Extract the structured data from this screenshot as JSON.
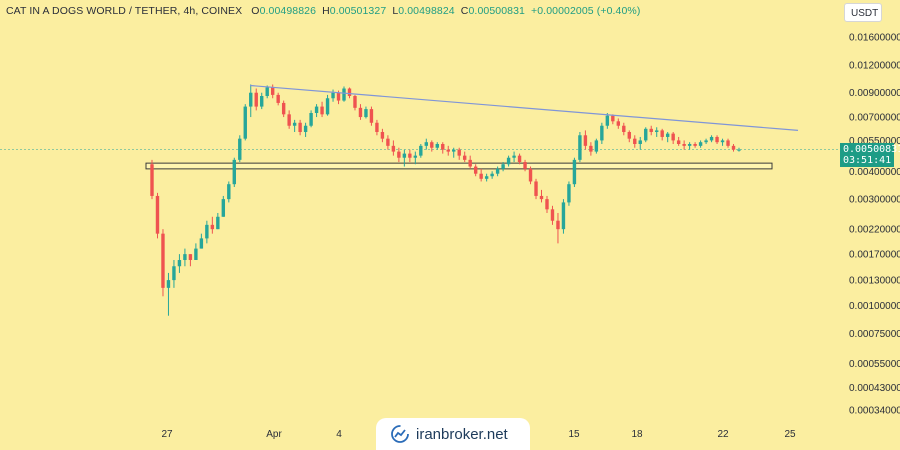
{
  "header": {
    "symbol": "CAT IN A DOGS WORLD / TETHER, 4h, COINEX",
    "o_label": "O",
    "o_value": "0.00498826",
    "h_label": "H",
    "h_value": "0.00501327",
    "l_label": "L",
    "l_value": "0.00498824",
    "c_label": "C",
    "c_value": "0.00500831",
    "change": "+0.00002005 (+0.40%)"
  },
  "currency": "USDT",
  "price_tag": {
    "price": "0.00500831",
    "countdown": "03:51:41"
  },
  "watermark": {
    "text": "iranbroker.net"
  },
  "colors": {
    "up": "#26a69a",
    "down": "#ef5350",
    "trendline": "#7f95d8",
    "zone_border": "#3a3a3a",
    "background": "#fbeea0"
  },
  "chart_data": {
    "type": "candlestick",
    "timeframe": "4h",
    "y_scale": "log",
    "y_ticks": [
      "0.01600000",
      "0.01200000",
      "0.00900000",
      "0.00700000",
      "0.00550000",
      "0.00400000",
      "0.00300000",
      "0.00220000",
      "0.00170000",
      "0.00130000",
      "0.00100000",
      "0.00075000",
      "0.00055000",
      "0.00043000",
      "0.00034000"
    ],
    "x_ticks": [
      "27",
      "Apr",
      "4",
      "15",
      "18",
      "22",
      "25"
    ],
    "last_price": 0.00500831,
    "annotations": [
      {
        "kind": "trendline",
        "from_price": 0.0097,
        "to_price": 0.0061
      },
      {
        "kind": "horizontal_zone",
        "low": 0.0041,
        "high": 0.00435
      }
    ],
    "candles": [
      [
        0.0043,
        0.0045,
        0.003,
        0.0031
      ],
      [
        0.0031,
        0.0032,
        0.002,
        0.0021
      ],
      [
        0.0021,
        0.0022,
        0.0011,
        0.0012
      ],
      [
        0.0012,
        0.0014,
        0.0009,
        0.0013
      ],
      [
        0.0013,
        0.0016,
        0.0012,
        0.0015
      ],
      [
        0.0015,
        0.0017,
        0.0014,
        0.0016
      ],
      [
        0.0016,
        0.0018,
        0.0015,
        0.0017
      ],
      [
        0.0017,
        0.0017,
        0.0015,
        0.0016
      ],
      [
        0.0016,
        0.0019,
        0.0016,
        0.0018
      ],
      [
        0.0018,
        0.0021,
        0.0018,
        0.002
      ],
      [
        0.002,
        0.0024,
        0.0019,
        0.0023
      ],
      [
        0.0023,
        0.0025,
        0.0021,
        0.0022
      ],
      [
        0.0022,
        0.0026,
        0.0022,
        0.0025
      ],
      [
        0.0025,
        0.0031,
        0.0025,
        0.003
      ],
      [
        0.003,
        0.0036,
        0.0029,
        0.0035
      ],
      [
        0.0035,
        0.0046,
        0.0034,
        0.0045
      ],
      [
        0.0045,
        0.0058,
        0.0044,
        0.0056
      ],
      [
        0.0056,
        0.008,
        0.0055,
        0.0078
      ],
      [
        0.0078,
        0.0098,
        0.007,
        0.009
      ],
      [
        0.009,
        0.0094,
        0.0075,
        0.0078
      ],
      [
        0.0078,
        0.009,
        0.0076,
        0.0087
      ],
      [
        0.0087,
        0.0097,
        0.0085,
        0.0095
      ],
      [
        0.0095,
        0.0098,
        0.0085,
        0.0088
      ],
      [
        0.0088,
        0.009,
        0.0079,
        0.0081
      ],
      [
        0.0081,
        0.0083,
        0.007,
        0.0072
      ],
      [
        0.0072,
        0.0075,
        0.0062,
        0.0064
      ],
      [
        0.0064,
        0.0068,
        0.006,
        0.0066
      ],
      [
        0.0066,
        0.0068,
        0.0058,
        0.006
      ],
      [
        0.006,
        0.0066,
        0.0057,
        0.0064
      ],
      [
        0.0064,
        0.0075,
        0.0063,
        0.0073
      ],
      [
        0.0073,
        0.008,
        0.007,
        0.0078
      ],
      [
        0.0078,
        0.0082,
        0.007,
        0.0072
      ],
      [
        0.0072,
        0.0088,
        0.0071,
        0.0085
      ],
      [
        0.0085,
        0.0093,
        0.0082,
        0.009
      ],
      [
        0.009,
        0.0092,
        0.008,
        0.0083
      ],
      [
        0.0083,
        0.0096,
        0.0082,
        0.0094
      ],
      [
        0.0094,
        0.0095,
        0.0085,
        0.0087
      ],
      [
        0.0087,
        0.0088,
        0.0075,
        0.0077
      ],
      [
        0.0077,
        0.008,
        0.0068,
        0.007
      ],
      [
        0.007,
        0.0078,
        0.0069,
        0.0076
      ],
      [
        0.0076,
        0.0078,
        0.0064,
        0.0066
      ],
      [
        0.0066,
        0.0068,
        0.0058,
        0.006
      ],
      [
        0.006,
        0.0062,
        0.0054,
        0.0056
      ],
      [
        0.0056,
        0.0058,
        0.005,
        0.0052
      ],
      [
        0.0052,
        0.0055,
        0.0047,
        0.0049
      ],
      [
        0.0049,
        0.0051,
        0.0044,
        0.0046
      ],
      [
        0.0046,
        0.005,
        0.0042,
        0.0048
      ],
      [
        0.0048,
        0.005,
        0.0044,
        0.0046
      ],
      [
        0.0046,
        0.0049,
        0.0043,
        0.0047
      ],
      [
        0.0047,
        0.0053,
        0.0046,
        0.0052
      ],
      [
        0.0052,
        0.0056,
        0.005,
        0.0054
      ],
      [
        0.0054,
        0.0055,
        0.0049,
        0.0051
      ],
      [
        0.0051,
        0.0054,
        0.005,
        0.0053
      ],
      [
        0.0053,
        0.0054,
        0.0048,
        0.005
      ],
      [
        0.005,
        0.0052,
        0.0047,
        0.0049
      ],
      [
        0.0049,
        0.0051,
        0.0046,
        0.005
      ],
      [
        0.005,
        0.0051,
        0.0045,
        0.0047
      ],
      [
        0.0047,
        0.0049,
        0.0044,
        0.0045
      ],
      [
        0.0045,
        0.0047,
        0.0041,
        0.0042
      ],
      [
        0.0042,
        0.0043,
        0.0038,
        0.0039
      ],
      [
        0.0039,
        0.0041,
        0.0036,
        0.0037
      ],
      [
        0.0037,
        0.0039,
        0.0036,
        0.0038
      ],
      [
        0.0038,
        0.004,
        0.0037,
        0.0039
      ],
      [
        0.0039,
        0.0042,
        0.0038,
        0.0041
      ],
      [
        0.0041,
        0.0044,
        0.004,
        0.0043
      ],
      [
        0.0043,
        0.0047,
        0.0042,
        0.0046
      ],
      [
        0.0046,
        0.0049,
        0.0044,
        0.0047
      ],
      [
        0.0047,
        0.0048,
        0.0043,
        0.0044
      ],
      [
        0.0044,
        0.0045,
        0.004,
        0.0041
      ],
      [
        0.0041,
        0.0042,
        0.0035,
        0.0036
      ],
      [
        0.0036,
        0.0037,
        0.003,
        0.0031
      ],
      [
        0.0031,
        0.0033,
        0.0029,
        0.003
      ],
      [
        0.003,
        0.0031,
        0.0026,
        0.0027
      ],
      [
        0.0027,
        0.0028,
        0.0023,
        0.0024
      ],
      [
        0.0024,
        0.0026,
        0.0019,
        0.0022
      ],
      [
        0.0022,
        0.003,
        0.0021,
        0.0029
      ],
      [
        0.0029,
        0.0036,
        0.0028,
        0.0035
      ],
      [
        0.0035,
        0.0046,
        0.0034,
        0.0045
      ],
      [
        0.0045,
        0.006,
        0.0044,
        0.0058
      ],
      [
        0.0058,
        0.0061,
        0.005,
        0.0052
      ],
      [
        0.0052,
        0.0054,
        0.0047,
        0.0049
      ],
      [
        0.0049,
        0.0056,
        0.0048,
        0.0055
      ],
      [
        0.0055,
        0.0066,
        0.0053,
        0.0064
      ],
      [
        0.0064,
        0.0073,
        0.0062,
        0.0071
      ],
      [
        0.0071,
        0.0072,
        0.0065,
        0.0067
      ],
      [
        0.0067,
        0.0069,
        0.0062,
        0.0064
      ],
      [
        0.0064,
        0.0066,
        0.0058,
        0.006
      ],
      [
        0.006,
        0.0061,
        0.0054,
        0.0056
      ],
      [
        0.0056,
        0.0058,
        0.0051,
        0.0053
      ],
      [
        0.0053,
        0.0057,
        0.005,
        0.0055
      ],
      [
        0.0055,
        0.0063,
        0.0054,
        0.0062
      ],
      [
        0.0062,
        0.0064,
        0.0058,
        0.006
      ],
      [
        0.006,
        0.0063,
        0.0057,
        0.0061
      ],
      [
        0.0061,
        0.0062,
        0.0055,
        0.0057
      ],
      [
        0.0057,
        0.006,
        0.0054,
        0.0059
      ],
      [
        0.0059,
        0.006,
        0.0053,
        0.0055
      ],
      [
        0.0055,
        0.0057,
        0.0052,
        0.0053
      ],
      [
        0.0053,
        0.0055,
        0.005,
        0.0052
      ],
      [
        0.0052,
        0.0054,
        0.005,
        0.0053
      ],
      [
        0.0053,
        0.0054,
        0.0051,
        0.0052
      ],
      [
        0.0052,
        0.0055,
        0.0051,
        0.0054
      ],
      [
        0.0054,
        0.0056,
        0.0053,
        0.0055
      ],
      [
        0.0055,
        0.0058,
        0.0054,
        0.0057
      ],
      [
        0.0057,
        0.0058,
        0.0053,
        0.0054
      ],
      [
        0.0054,
        0.0056,
        0.0052,
        0.0055
      ],
      [
        0.0055,
        0.0056,
        0.0051,
        0.0052
      ],
      [
        0.0052,
        0.0053,
        0.0049,
        0.005
      ],
      [
        0.005,
        0.0051,
        0.0049,
        0.005
      ]
    ]
  }
}
